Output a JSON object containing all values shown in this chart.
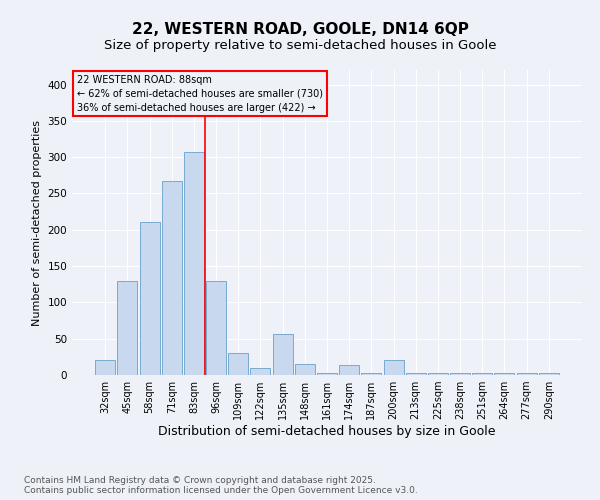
{
  "title": "22, WESTERN ROAD, GOOLE, DN14 6QP",
  "subtitle": "Size of property relative to semi-detached houses in Goole",
  "xlabel": "Distribution of semi-detached houses by size in Goole",
  "ylabel": "Number of semi-detached properties",
  "categories": [
    "32sqm",
    "45sqm",
    "58sqm",
    "71sqm",
    "83sqm",
    "96sqm",
    "109sqm",
    "122sqm",
    "135sqm",
    "148sqm",
    "161sqm",
    "174sqm",
    "187sqm",
    "200sqm",
    "213sqm",
    "225sqm",
    "238sqm",
    "251sqm",
    "264sqm",
    "277sqm",
    "290sqm"
  ],
  "values": [
    20,
    130,
    210,
    267,
    307,
    130,
    30,
    10,
    57,
    15,
    3,
    14,
    3,
    20,
    3,
    3,
    3,
    3,
    3,
    3,
    3
  ],
  "bar_color": "#c8d8ee",
  "bar_edge_color": "#6aa0cc",
  "red_line_x": 4.5,
  "annotation_title": "22 WESTERN ROAD: 88sqm",
  "annotation_line1": "← 62% of semi-detached houses are smaller (730)",
  "annotation_line2": "36% of semi-detached houses are larger (422) →",
  "ylim": [
    0,
    420
  ],
  "yticks": [
    0,
    50,
    100,
    150,
    200,
    250,
    300,
    350,
    400
  ],
  "footer_line1": "Contains HM Land Registry data © Crown copyright and database right 2025.",
  "footer_line2": "Contains public sector information licensed under the Open Government Licence v3.0.",
  "bg_color": "#eef2f8",
  "grid_color": "#ffffff",
  "title_fontsize": 11,
  "subtitle_fontsize": 9.5,
  "xlabel_fontsize": 9,
  "ylabel_fontsize": 8,
  "tick_fontsize": 7,
  "annot_fontsize": 7,
  "footer_fontsize": 6.5
}
